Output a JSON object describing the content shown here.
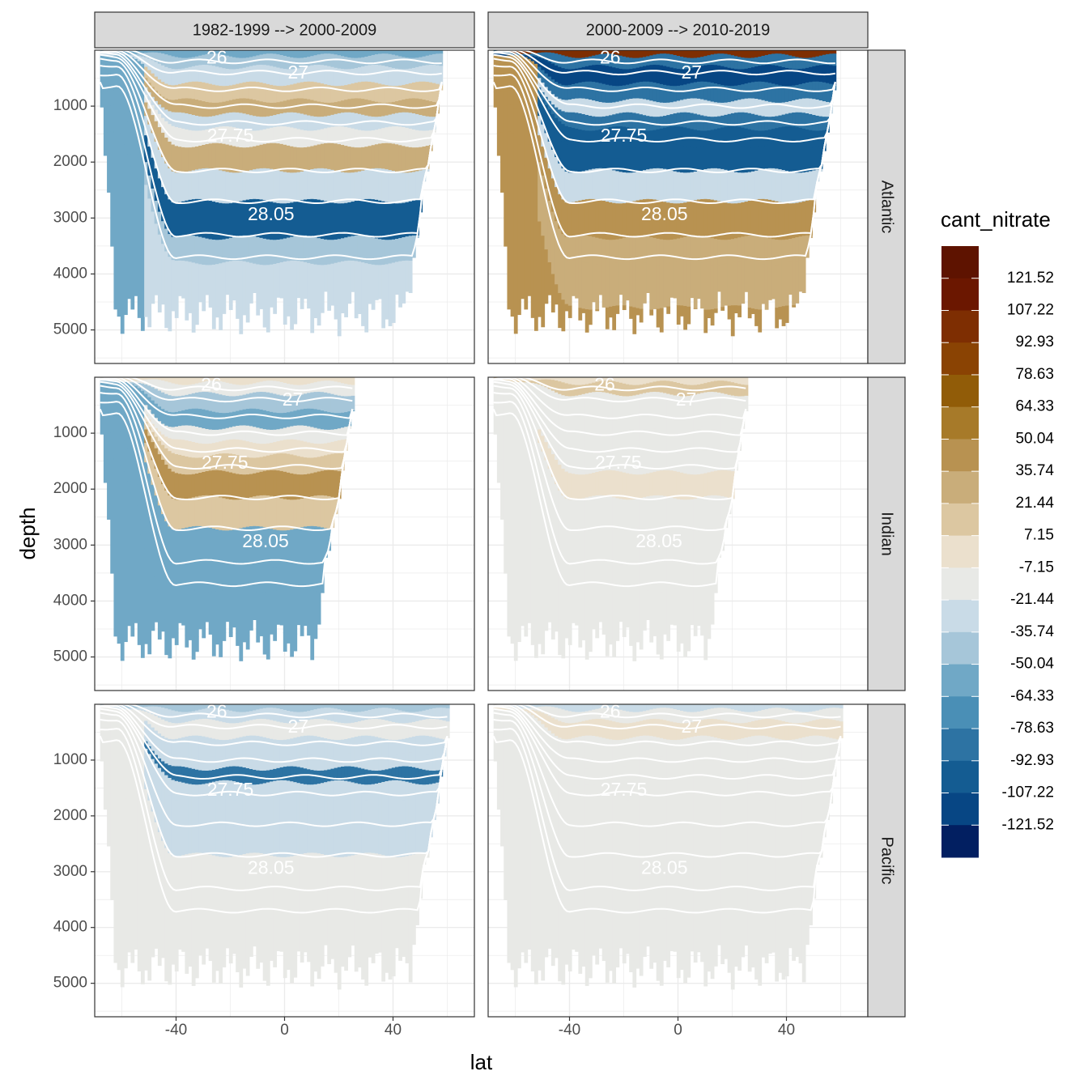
{
  "chart_data": {
    "type": "heatmap",
    "description_fields": {
      "x_var": "lat",
      "y_var": "depth",
      "fill_var": "cant_nitrate"
    },
    "xlabel": "lat",
    "ylabel": "depth",
    "legend_title": "cant_nitrate",
    "legend_position": "right",
    "xlim": [
      -70,
      70
    ],
    "ylim": [
      5600,
      0
    ],
    "x_ticks": [
      -40,
      0,
      40
    ],
    "x_tick_labels": [
      "-40",
      "0",
      "40"
    ],
    "y_ticks": [
      1000,
      2000,
      3000,
      4000,
      5000
    ],
    "y_tick_labels": [
      "1000",
      "2000",
      "3000",
      "4000",
      "5000"
    ],
    "grid": true,
    "col_facets": [
      "1982-1999 --> 2000-2009",
      "2000-2009 --> 2010-2019"
    ],
    "row_facets": [
      "Atlantic",
      "Indian",
      "Pacific"
    ],
    "legend_breaks": [
      {
        "label": "121.52",
        "color": "#6b1700"
      },
      {
        "label": "107.22",
        "color": "#7e2e02"
      },
      {
        "label": "92.93",
        "color": "#8a4303"
      },
      {
        "label": "78.63",
        "color": "#915c08"
      },
      {
        "label": "64.33",
        "color": "#a77a29"
      },
      {
        "label": "50.04",
        "color": "#b89251"
      },
      {
        "label": "35.74",
        "color": "#c9ad7a"
      },
      {
        "label": "21.44",
        "color": "#dcc7a1"
      },
      {
        "label": "7.15",
        "color": "#ebe0cd"
      },
      {
        "label": "-7.15",
        "color": "#e8e9e6"
      },
      {
        "label": "-21.44",
        "color": "#c9dbe7"
      },
      {
        "label": "-35.74",
        "color": "#a6c6d9"
      },
      {
        "label": "-50.04",
        "color": "#70a8c6"
      },
      {
        "label": "-64.33",
        "color": "#4a8fb6"
      },
      {
        "label": "-78.63",
        "color": "#2d73a3"
      },
      {
        "label": "-92.93",
        "color": "#145c92"
      },
      {
        "label": "-107.22",
        "color": "#074684"
      },
      {
        "label": "-121.52",
        "color": "#052e74"
      }
    ],
    "legend_extremes": {
      "top_color": "#5e1300",
      "bottom_color": "#021f61"
    },
    "contour_labels": [
      "26",
      "27",
      "27.75",
      "28.05"
    ]
  }
}
